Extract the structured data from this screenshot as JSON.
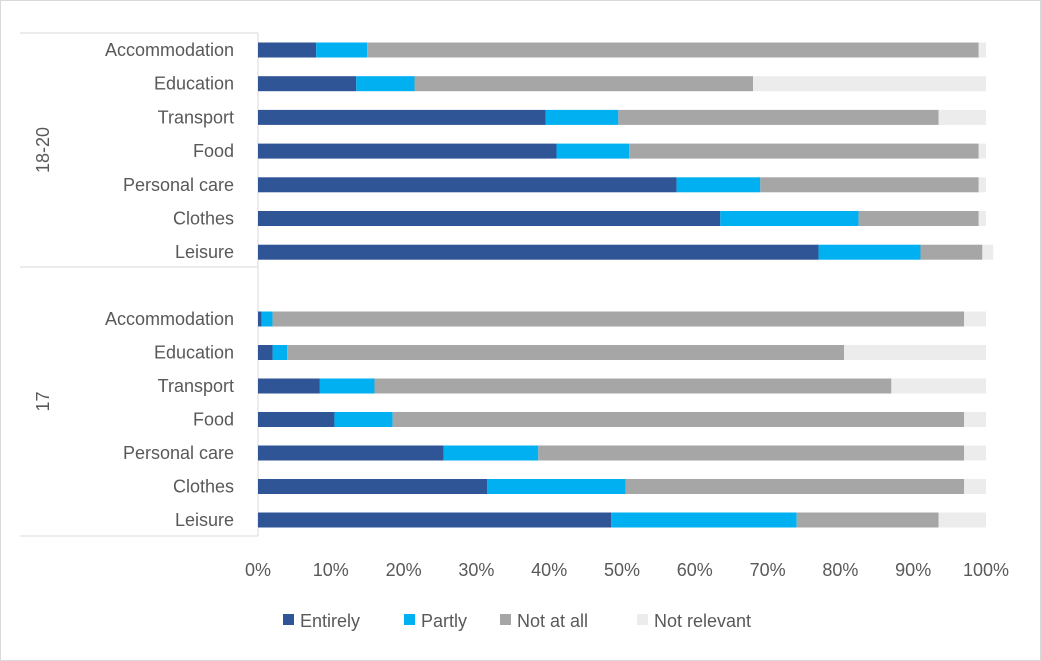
{
  "chart_data": {
    "type": "bar",
    "orientation": "horizontal",
    "stacked": true,
    "percent_scale": true,
    "xlim": [
      0,
      100
    ],
    "x_ticks": [
      "0%",
      "10%",
      "20%",
      "30%",
      "40%",
      "50%",
      "60%",
      "70%",
      "80%",
      "90%",
      "100%"
    ],
    "grid": false,
    "legend_position": "bottom",
    "groups": [
      {
        "name": "18-20",
        "categories": [
          "Accommodation",
          "Education",
          "Transport",
          "Food",
          "Personal care",
          "Clothes",
          "Leisure"
        ],
        "series": [
          {
            "name": "Entirely",
            "values": [
              8,
              13.5,
              39.5,
              41,
              57.5,
              63.5,
              77
            ]
          },
          {
            "name": "Partly",
            "values": [
              7,
              8,
              10,
              10,
              11.5,
              19,
              14
            ]
          },
          {
            "name": "Not at all",
            "values": [
              84,
              46.5,
              44,
              48,
              30,
              16.5,
              8.5
            ]
          },
          {
            "name": "Not relevant",
            "values": [
              1,
              32,
              6.5,
              1,
              1,
              1,
              1.5
            ]
          }
        ]
      },
      {
        "name": "17",
        "categories": [
          "Accommodation",
          "Education",
          "Transport",
          "Food",
          "Personal care",
          "Clothes",
          "Leisure"
        ],
        "series": [
          {
            "name": "Entirely",
            "values": [
              0.5,
              2,
              8.5,
              10.5,
              25.5,
              31.5,
              48.5
            ]
          },
          {
            "name": "Partly",
            "values": [
              1.5,
              2,
              7.5,
              8,
              13,
              19,
              25.5
            ]
          },
          {
            "name": "Not at all",
            "values": [
              95,
              76.5,
              71,
              78.5,
              58.5,
              46.5,
              19.5
            ]
          },
          {
            "name": "Not relevant",
            "values": [
              3,
              19.5,
              13,
              3,
              3,
              3,
              6.5
            ]
          }
        ]
      }
    ]
  },
  "colors": {
    "Entirely": "#2f5597",
    "Partly": "#00b0f0",
    "Not at all": "#a6a6a6",
    "Not relevant": "#ececec",
    "axis": "#d9d9d9",
    "text": "#595959"
  }
}
